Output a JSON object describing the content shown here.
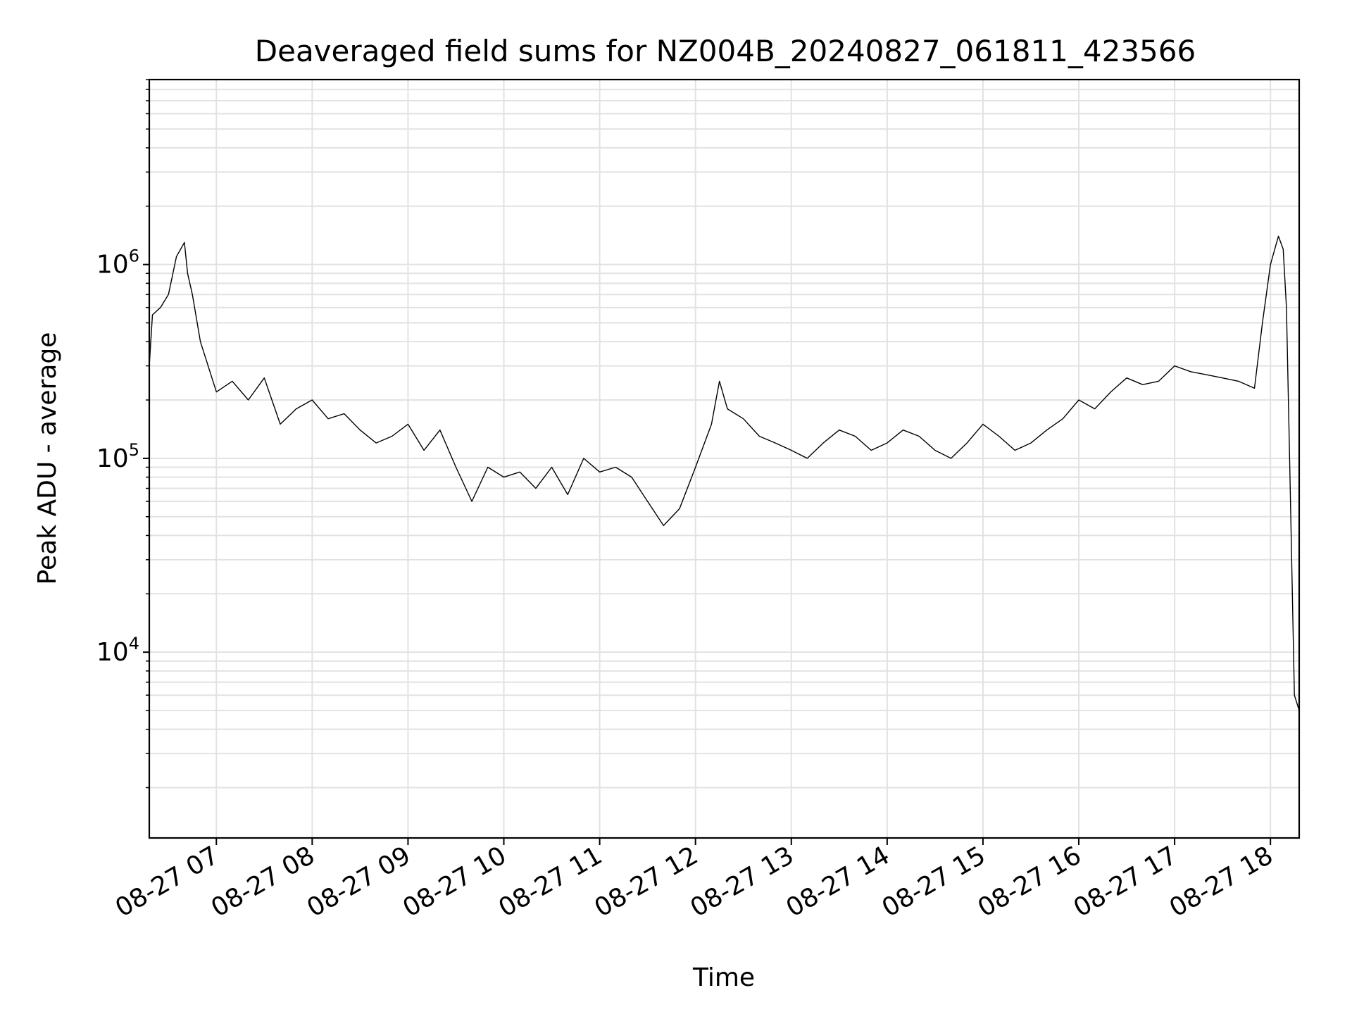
{
  "chart_data": {
    "type": "line",
    "title": "Deaveraged field sums for NZ004B_20240827_061811_423566",
    "xlabel": "Time",
    "ylabel": "Peak ADU - average",
    "y_scale": "log",
    "grid": true,
    "legend": "none",
    "xlim": [
      "2024-08-27 06:18",
      "2024-08-27 18:18"
    ],
    "ylim": [
      1100,
      9000000
    ],
    "x_tick_labels": [
      "08-27 07",
      "08-27 08",
      "08-27 09",
      "08-27 10",
      "08-27 11",
      "08-27 12",
      "08-27 13",
      "08-27 14",
      "08-27 15",
      "08-27 16",
      "08-27 17",
      "08-27 18"
    ],
    "y_tick_labels": [
      {
        "base": "10",
        "exp": "4"
      },
      {
        "base": "10",
        "exp": "5"
      },
      {
        "base": "10",
        "exp": "6"
      }
    ],
    "series": [
      {
        "color": "#000000",
        "x": [
          "2024-08-27 06:18",
          "2024-08-27 06:20",
          "2024-08-27 06:25",
          "2024-08-27 06:30",
          "2024-08-27 06:35",
          "2024-08-27 06:40",
          "2024-08-27 06:42",
          "2024-08-27 06:45",
          "2024-08-27 06:50",
          "2024-08-27 07:00",
          "2024-08-27 07:10",
          "2024-08-27 07:20",
          "2024-08-27 07:30",
          "2024-08-27 07:40",
          "2024-08-27 07:50",
          "2024-08-27 08:00",
          "2024-08-27 08:10",
          "2024-08-27 08:20",
          "2024-08-27 08:30",
          "2024-08-27 08:40",
          "2024-08-27 08:50",
          "2024-08-27 09:00",
          "2024-08-27 09:10",
          "2024-08-27 09:20",
          "2024-08-27 09:30",
          "2024-08-27 09:40",
          "2024-08-27 09:50",
          "2024-08-27 10:00",
          "2024-08-27 10:10",
          "2024-08-27 10:20",
          "2024-08-27 10:30",
          "2024-08-27 10:40",
          "2024-08-27 10:50",
          "2024-08-27 11:00",
          "2024-08-27 11:10",
          "2024-08-27 11:20",
          "2024-08-27 11:30",
          "2024-08-27 11:40",
          "2024-08-27 11:50",
          "2024-08-27 12:00",
          "2024-08-27 12:10",
          "2024-08-27 12:15",
          "2024-08-27 12:20",
          "2024-08-27 12:30",
          "2024-08-27 12:40",
          "2024-08-27 12:50",
          "2024-08-27 13:00",
          "2024-08-27 13:10",
          "2024-08-27 13:20",
          "2024-08-27 13:30",
          "2024-08-27 13:40",
          "2024-08-27 13:50",
          "2024-08-27 14:00",
          "2024-08-27 14:10",
          "2024-08-27 14:20",
          "2024-08-27 14:30",
          "2024-08-27 14:40",
          "2024-08-27 14:50",
          "2024-08-27 15:00",
          "2024-08-27 15:10",
          "2024-08-27 15:20",
          "2024-08-27 15:30",
          "2024-08-27 15:40",
          "2024-08-27 15:50",
          "2024-08-27 16:00",
          "2024-08-27 16:10",
          "2024-08-27 16:20",
          "2024-08-27 16:30",
          "2024-08-27 16:40",
          "2024-08-27 16:50",
          "2024-08-27 17:00",
          "2024-08-27 17:10",
          "2024-08-27 17:20",
          "2024-08-27 17:30",
          "2024-08-27 17:40",
          "2024-08-27 17:50",
          "2024-08-27 17:55",
          "2024-08-27 18:00",
          "2024-08-27 18:05",
          "2024-08-27 18:08",
          "2024-08-27 18:10",
          "2024-08-27 18:12",
          "2024-08-27 18:15",
          "2024-08-27 18:18"
        ],
        "y": [
          300000,
          550000,
          600000,
          700000,
          1100000,
          1300000,
          900000,
          700000,
          400000,
          220000,
          250000,
          200000,
          260000,
          150000,
          180000,
          200000,
          160000,
          170000,
          140000,
          120000,
          130000,
          150000,
          110000,
          140000,
          90000,
          60000,
          90000,
          80000,
          85000,
          70000,
          90000,
          65000,
          100000,
          85000,
          90000,
          80000,
          60000,
          45000,
          55000,
          90000,
          150000,
          250000,
          180000,
          160000,
          130000,
          120000,
          110000,
          100000,
          120000,
          140000,
          130000,
          110000,
          120000,
          140000,
          130000,
          110000,
          100000,
          120000,
          150000,
          130000,
          110000,
          120000,
          140000,
          160000,
          200000,
          180000,
          220000,
          260000,
          240000,
          250000,
          300000,
          280000,
          270000,
          260000,
          250000,
          230000,
          500000,
          1000000,
          1400000,
          1200000,
          600000,
          100000,
          6000,
          5000
        ]
      }
    ]
  }
}
